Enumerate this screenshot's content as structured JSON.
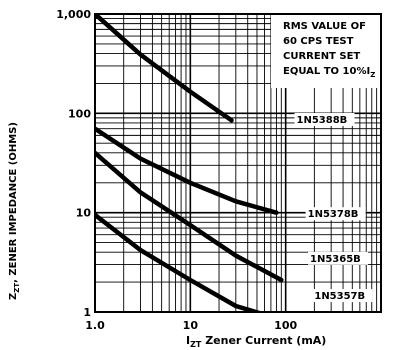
{
  "chart_data": {
    "type": "line",
    "xscale": "log",
    "yscale": "log",
    "xlim": [
      1,
      1000
    ],
    "ylim": [
      1,
      1000
    ],
    "grid": true,
    "xlabel": {
      "main": "I",
      "sub": "ZT",
      "rest": " Zener Current (mA)"
    },
    "ylabel": {
      "main": "Z",
      "sub": "ZT",
      "rest": ", ZENER IMPEDANCE (OHMS)"
    },
    "x_ticks": [
      {
        "value": 1,
        "label": "1.0"
      },
      {
        "value": 10,
        "label": "10"
      },
      {
        "value": 100,
        "label": "100"
      }
    ],
    "y_ticks": [
      {
        "value": 1000,
        "label": "1,000"
      },
      {
        "value": 100,
        "label": "100"
      },
      {
        "value": 10,
        "label": "10"
      },
      {
        "value": 1,
        "label": "1"
      }
    ],
    "annotation": {
      "lines": [
        "RMS VALUE OF",
        "60 CPS TEST",
        "CURRENT SET",
        "EQUAL TO 10%I"
      ],
      "sub": "Z"
    },
    "series": [
      {
        "name": "1N5388B",
        "label_x": 130,
        "label_y": 80,
        "points": [
          [
            1.0,
            1000
          ],
          [
            3,
            390
          ],
          [
            10,
            165
          ],
          [
            27,
            85
          ]
        ]
      },
      {
        "name": "1N5378B",
        "label_x": 170,
        "label_y": 9.0,
        "points": [
          [
            1.0,
            70
          ],
          [
            3,
            35
          ],
          [
            10,
            20
          ],
          [
            30,
            13
          ],
          [
            80,
            10
          ]
        ]
      },
      {
        "name": "1N5365B",
        "label_x": 180,
        "label_y": 3.2,
        "points": [
          [
            1.0,
            40
          ],
          [
            3,
            16
          ],
          [
            10,
            7.5
          ],
          [
            30,
            3.7
          ],
          [
            90,
            2.1
          ]
        ]
      },
      {
        "name": "1N5357B",
        "label_x": 200,
        "label_y": 1.35,
        "points": [
          [
            1.0,
            9.5
          ],
          [
            3,
            4.2
          ],
          [
            10,
            2.1
          ],
          [
            30,
            1.15
          ],
          [
            70,
            0.9
          ]
        ]
      }
    ]
  }
}
